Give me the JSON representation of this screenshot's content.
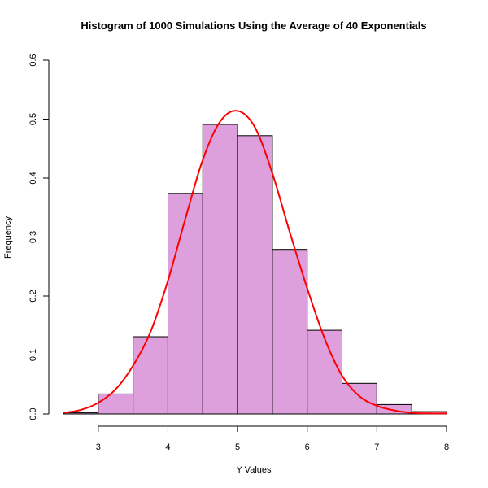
{
  "chart_data": {
    "type": "bar",
    "title": "Histogram of 1000 Simulations Using the Average of 40 Exponentials",
    "xlabel": "Y Values",
    "ylabel": "Frequency",
    "xlim": [
      2.5,
      8
    ],
    "ylim": [
      0,
      0.6
    ],
    "x_ticks": [
      3,
      4,
      5,
      6,
      7,
      8
    ],
    "y_ticks": [
      0.0,
      0.1,
      0.2,
      0.3,
      0.4,
      0.5,
      0.6
    ],
    "bar_color": "#dda0dd",
    "bars": [
      {
        "x0": 2.5,
        "x1": 3.0,
        "value": 0.002
      },
      {
        "x0": 3.0,
        "x1": 3.5,
        "value": 0.034
      },
      {
        "x0": 3.5,
        "x1": 4.0,
        "value": 0.131
      },
      {
        "x0": 4.0,
        "x1": 4.5,
        "value": 0.374
      },
      {
        "x0": 4.5,
        "x1": 5.0,
        "value": 0.491
      },
      {
        "x0": 5.0,
        "x1": 5.5,
        "value": 0.472
      },
      {
        "x0": 5.5,
        "x1": 6.0,
        "value": 0.279
      },
      {
        "x0": 6.0,
        "x1": 6.5,
        "value": 0.142
      },
      {
        "x0": 6.5,
        "x1": 7.0,
        "value": 0.052
      },
      {
        "x0": 7.0,
        "x1": 7.5,
        "value": 0.016
      },
      {
        "x0": 7.5,
        "x1": 8.0,
        "value": 0.004
      }
    ],
    "curve": {
      "color": "#ff0000",
      "x": [
        2.5,
        2.75,
        3.0,
        3.25,
        3.5,
        3.75,
        4.0,
        4.25,
        4.5,
        4.75,
        5.0,
        5.25,
        5.5,
        5.75,
        6.0,
        6.25,
        6.5,
        6.75,
        7.0,
        7.25,
        7.5,
        7.75,
        8.0
      ],
      "y": [
        0.002,
        0.007,
        0.019,
        0.042,
        0.082,
        0.139,
        0.226,
        0.331,
        0.431,
        0.496,
        0.514,
        0.486,
        0.408,
        0.308,
        0.213,
        0.128,
        0.065,
        0.03,
        0.014,
        0.006,
        0.002,
        0.001,
        0.001
      ]
    }
  }
}
